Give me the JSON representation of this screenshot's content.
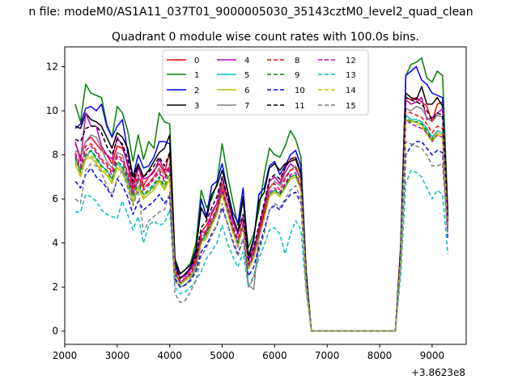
{
  "figure": {
    "suptitle": "n file: modeM0/AS1A11_037T01_9000005030_35143cztM0_level2_quad_clean",
    "offset_label": "+3.8623e8"
  },
  "chart_data": {
    "type": "line",
    "title": "Quadrant 0 module wise count rates with 100.0s bins.",
    "xlabel": "",
    "ylabel": "",
    "x_offset": 386230000,
    "xlim": [
      2000,
      9650
    ],
    "ylim": [
      -0.6,
      12.9
    ],
    "xticks": [
      2000,
      3000,
      4000,
      5000,
      6000,
      7000,
      8000,
      9000
    ],
    "yticks": [
      0,
      2,
      4,
      6,
      8,
      10,
      12
    ],
    "legend_position": "upper center",
    "grid": false,
    "x": [
      2200,
      2300,
      2400,
      2500,
      2600,
      2700,
      2800,
      2900,
      3000,
      3100,
      3200,
      3300,
      3400,
      3500,
      3600,
      3700,
      3800,
      3900,
      4000,
      4100,
      4200,
      4300,
      4400,
      4500,
      4600,
      4700,
      4800,
      4900,
      5000,
      5100,
      5200,
      5300,
      5400,
      5500,
      5600,
      5700,
      5800,
      5900,
      6000,
      6100,
      6200,
      6300,
      6400,
      6500,
      6600,
      6700,
      8300,
      8400,
      8500,
      8600,
      8700,
      8800,
      8900,
      9000,
      9100,
      9200,
      9300
    ],
    "series": [
      {
        "name": "0",
        "color": "#ff0000",
        "dash": "solid",
        "values": [
          8.5,
          7.9,
          8.6,
          8.8,
          8.5,
          8.2,
          8.0,
          7.6,
          8.4,
          8.3,
          7.6,
          6.7,
          7.5,
          6.6,
          7.0,
          7.3,
          7.6,
          7.2,
          8.1,
          3.0,
          2.4,
          2.6,
          2.8,
          3.4,
          4.5,
          4.8,
          5.3,
          5.8,
          6.7,
          6.0,
          5.1,
          4.5,
          5.1,
          3.2,
          3.8,
          4.5,
          5.5,
          6.8,
          7.0,
          6.7,
          7.4,
          7.8,
          7.9,
          7.2,
          2.5,
          0,
          0,
          3.5,
          10.6,
          10.5,
          10.6,
          10.4,
          10.2,
          9.5,
          10.3,
          10.4,
          5.2
        ]
      },
      {
        "name": "1",
        "color": "#008000",
        "dash": "solid",
        "values": [
          10.3,
          9.5,
          11.2,
          10.8,
          10.7,
          10.6,
          9.4,
          8.8,
          10.2,
          9.9,
          9.1,
          7.7,
          8.9,
          7.8,
          8.6,
          8.3,
          9.9,
          9.5,
          9.4,
          3.3,
          2.6,
          2.8,
          3.1,
          4.0,
          6.4,
          5.6,
          6.0,
          6.7,
          8.5,
          7.1,
          5.9,
          4.8,
          5.9,
          3.8,
          4.4,
          5.5,
          7.1,
          8.3,
          8.0,
          7.9,
          8.4,
          9.1,
          8.7,
          7.9,
          2.8,
          0,
          0,
          3.9,
          11.6,
          12.1,
          12.2,
          12.4,
          11.5,
          11.3,
          11.8,
          11.6,
          5.5
        ]
      },
      {
        "name": "2",
        "color": "#0000ff",
        "dash": "solid",
        "values": [
          9.2,
          9.4,
          10.1,
          10.2,
          10.0,
          10.3,
          9.3,
          8.8,
          9.3,
          9.6,
          8.1,
          7.0,
          8.0,
          7.4,
          7.5,
          7.9,
          8.6,
          8.6,
          8.5,
          3.1,
          2.4,
          2.6,
          2.9,
          3.6,
          6.0,
          5.2,
          6.6,
          6.8,
          7.6,
          6.4,
          5.4,
          4.9,
          6.5,
          3.3,
          4.1,
          6.2,
          6.5,
          7.5,
          7.7,
          7.1,
          7.5,
          8.0,
          8.2,
          7.5,
          2.6,
          0,
          0,
          3.7,
          11.6,
          11.8,
          12.0,
          11.4,
          11.2,
          10.8,
          10.7,
          10.6,
          5.1
        ]
      },
      {
        "name": "3",
        "color": "#000000",
        "dash": "solid",
        "values": [
          9.3,
          9.2,
          9.9,
          9.6,
          9.5,
          9.3,
          8.8,
          8.3,
          9.0,
          8.8,
          8.3,
          7.0,
          7.6,
          7.0,
          7.3,
          7.7,
          8.1,
          8.3,
          8.9,
          3.2,
          2.6,
          2.8,
          3.0,
          3.7,
          5.6,
          5.1,
          6.2,
          6.6,
          7.3,
          6.4,
          5.2,
          4.5,
          6.1,
          3.4,
          4.2,
          5.9,
          6.3,
          7.4,
          7.6,
          7.3,
          7.6,
          7.7,
          7.8,
          7.1,
          2.7,
          0,
          0,
          3.7,
          10.8,
          10.6,
          10.5,
          11.1,
          10.3,
          10.3,
          10.6,
          10.2,
          5.3
        ]
      },
      {
        "name": "4",
        "color": "#bf00bf",
        "dash": "solid",
        "values": [
          8.6,
          7.7,
          9.9,
          9.3,
          9.3,
          8.4,
          8.0,
          7.8,
          8.8,
          8.4,
          7.5,
          6.5,
          7.4,
          6.9,
          7.0,
          7.2,
          7.8,
          7.3,
          7.4,
          2.9,
          2.4,
          2.5,
          2.8,
          3.2,
          4.5,
          4.5,
          5.4,
          5.8,
          7.0,
          6.0,
          5.0,
          4.4,
          5.2,
          3.2,
          3.6,
          4.7,
          5.7,
          6.8,
          7.0,
          6.7,
          7.2,
          7.6,
          7.4,
          6.9,
          2.5,
          0,
          0,
          3.6,
          10.5,
          10.3,
          10.4,
          10.6,
          9.6,
          9.7,
          9.9,
          10.1,
          4.8
        ]
      },
      {
        "name": "5",
        "color": "#00bfbf",
        "dash": "solid",
        "values": [
          7.8,
          7.3,
          7.9,
          8.2,
          7.8,
          7.5,
          7.3,
          6.9,
          7.6,
          7.4,
          6.8,
          5.9,
          6.6,
          6.2,
          6.3,
          6.6,
          6.9,
          6.5,
          6.9,
          2.7,
          2.2,
          2.3,
          2.5,
          3.0,
          4.1,
          4.3,
          4.9,
          5.4,
          6.3,
          5.5,
          4.6,
          4.0,
          4.8,
          2.9,
          3.4,
          4.3,
          5.2,
          6.2,
          6.4,
          6.2,
          6.6,
          7.0,
          7.1,
          6.5,
          2.3,
          0,
          0,
          3.3,
          9.8,
          9.6,
          9.6,
          9.5,
          9.2,
          8.8,
          9.1,
          9.0,
          4.7
        ]
      },
      {
        "name": "6",
        "color": "#bfbf00",
        "dash": "solid",
        "values": [
          7.6,
          7.0,
          7.8,
          7.9,
          7.6,
          7.3,
          7.1,
          6.7,
          7.4,
          7.2,
          6.6,
          5.8,
          6.5,
          6.0,
          6.2,
          6.4,
          6.8,
          6.4,
          6.9,
          2.6,
          2.1,
          2.3,
          2.5,
          2.9,
          4.0,
          4.2,
          4.8,
          5.3,
          6.2,
          5.4,
          4.5,
          3.9,
          4.7,
          2.8,
          3.3,
          4.2,
          5.1,
          6.1,
          6.3,
          6.1,
          6.5,
          6.9,
          7.0,
          6.4,
          2.2,
          0,
          0,
          3.2,
          9.6,
          9.5,
          9.5,
          9.4,
          9.0,
          8.7,
          9.0,
          8.9,
          4.6
        ]
      },
      {
        "name": "7",
        "color": "#808080",
        "dash": "solid",
        "values": [
          8.2,
          8.0,
          8.6,
          8.9,
          8.8,
          8.3,
          7.7,
          7.4,
          8.1,
          8.0,
          7.1,
          6.3,
          7.0,
          6.5,
          6.7,
          7.0,
          7.4,
          7.1,
          7.5,
          2.3,
          2.0,
          2.1,
          2.4,
          2.8,
          4.0,
          4.5,
          4.9,
          5.6,
          6.6,
          5.6,
          4.7,
          3.8,
          4.9,
          2.1,
          1.9,
          4.2,
          5.4,
          6.5,
          6.8,
          6.6,
          7.0,
          7.3,
          7.5,
          6.9,
          2.4,
          0,
          0,
          3.4,
          10.1,
          10.0,
          10.2,
          10.1,
          9.7,
          9.5,
          9.8,
          9.7,
          4.9
        ]
      },
      {
        "name": "8",
        "color": "#ff0000",
        "dash": "dashed",
        "values": [
          8.1,
          7.5,
          8.4,
          8.5,
          8.2,
          7.8,
          7.6,
          7.2,
          8.0,
          7.8,
          7.2,
          6.4,
          7.1,
          6.5,
          6.7,
          7.0,
          7.3,
          6.9,
          7.6,
          2.8,
          2.3,
          2.4,
          2.7,
          3.2,
          4.3,
          4.6,
          5.1,
          5.6,
          6.5,
          5.7,
          4.8,
          4.2,
          4.9,
          3.0,
          3.6,
          4.5,
          5.4,
          6.5,
          6.7,
          6.4,
          6.9,
          7.3,
          7.4,
          6.8,
          2.4,
          0,
          0,
          3.4,
          10.0,
          9.9,
          9.8,
          9.7,
          9.4,
          9.0,
          9.3,
          9.2,
          4.8
        ]
      },
      {
        "name": "9",
        "color": "#008000",
        "dash": "dashed",
        "values": [
          7.9,
          7.2,
          8.0,
          8.2,
          7.9,
          7.5,
          7.3,
          6.9,
          7.7,
          7.5,
          6.9,
          6.1,
          6.8,
          6.2,
          6.4,
          6.7,
          7.0,
          6.6,
          7.2,
          2.6,
          2.2,
          2.3,
          2.6,
          3.0,
          4.1,
          4.4,
          4.9,
          5.4,
          6.3,
          5.5,
          4.6,
          4.0,
          4.7,
          2.9,
          3.4,
          4.3,
          5.2,
          6.2,
          6.4,
          6.2,
          6.6,
          7.0,
          7.1,
          6.5,
          2.3,
          0,
          0,
          3.3,
          9.7,
          9.5,
          9.5,
          9.4,
          9.1,
          8.7,
          8.9,
          8.8,
          4.6
        ]
      },
      {
        "name": "10",
        "color": "#0000ff",
        "dash": "dashed",
        "values": [
          6.8,
          6.5,
          7.1,
          7.4,
          7.0,
          6.8,
          6.5,
          6.1,
          6.9,
          6.6,
          6.1,
          5.3,
          5.9,
          5.5,
          5.7,
          5.9,
          6.2,
          5.8,
          6.1,
          2.4,
          2.0,
          2.1,
          2.3,
          2.7,
          3.6,
          3.9,
          4.4,
          4.8,
          5.6,
          4.9,
          4.1,
          3.5,
          4.2,
          2.5,
          2.9,
          3.8,
          4.6,
          5.5,
          5.7,
          5.5,
          5.9,
          6.2,
          6.3,
          5.8,
          2.1,
          0,
          0,
          3.0,
          8.0,
          8.4,
          8.6,
          8.6,
          8.3,
          8.0,
          8.2,
          8.1,
          4.2
        ]
      },
      {
        "name": "11",
        "color": "#000000",
        "dash": "dashed",
        "values": [
          8.7,
          8.6,
          9.2,
          9.3,
          9.3,
          9.0,
          8.4,
          8.0,
          8.7,
          8.5,
          7.8,
          6.8,
          7.5,
          7.0,
          7.2,
          7.5,
          7.9,
          7.5,
          8.1,
          3.0,
          2.4,
          2.6,
          2.9,
          3.4,
          4.7,
          5.0,
          5.6,
          6.1,
          7.0,
          6.1,
          5.2,
          4.5,
          5.3,
          3.2,
          3.8,
          4.8,
          5.8,
          6.9,
          7.1,
          6.9,
          7.4,
          7.8,
          7.9,
          7.2,
          2.5,
          0,
          0,
          3.6,
          10.6,
          10.5,
          10.4,
          10.3,
          10.0,
          9.6,
          9.9,
          9.8,
          5.0
        ]
      },
      {
        "name": "12",
        "color": "#bf00bf",
        "dash": "dashed",
        "values": [
          8.0,
          7.4,
          8.2,
          8.4,
          8.1,
          7.7,
          7.5,
          7.1,
          7.9,
          7.7,
          7.0,
          6.2,
          6.9,
          6.4,
          6.6,
          6.9,
          7.2,
          6.8,
          7.4,
          2.7,
          2.2,
          2.4,
          2.6,
          3.1,
          4.2,
          4.5,
          5.0,
          5.5,
          6.4,
          5.6,
          4.7,
          4.1,
          4.8,
          2.9,
          3.5,
          4.4,
          5.3,
          6.3,
          6.5,
          6.3,
          6.7,
          7.1,
          7.2,
          6.6,
          2.3,
          0,
          0,
          3.3,
          9.6,
          9.4,
          9.3,
          9.2,
          9.0,
          8.6,
          8.9,
          8.8,
          4.6
        ]
      },
      {
        "name": "13",
        "color": "#00bfbf",
        "dash": "dashed",
        "values": [
          5.4,
          5.4,
          6.2,
          6.1,
          5.9,
          5.5,
          5.3,
          5.2,
          5.1,
          5.9,
          5.3,
          4.6,
          5.2,
          4.0,
          4.8,
          5.0,
          4.8,
          4.9,
          5.5,
          2.0,
          1.7,
          1.8,
          2.0,
          2.3,
          2.7,
          3.3,
          3.6,
          4.0,
          4.8,
          4.0,
          3.4,
          2.9,
          3.6,
          2.0,
          2.5,
          3.3,
          3.9,
          4.6,
          4.7,
          4.4,
          3.5,
          4.4,
          5.0,
          4.6,
          1.8,
          0,
          0,
          2.5,
          6.7,
          7.3,
          7.2,
          7.0,
          6.5,
          6.0,
          6.4,
          6.2,
          3.5
        ]
      },
      {
        "name": "14",
        "color": "#bfbf00",
        "dash": "dashed",
        "values": [
          7.7,
          7.1,
          7.9,
          8.0,
          7.7,
          7.4,
          7.2,
          6.8,
          7.5,
          7.3,
          6.7,
          5.9,
          6.6,
          6.1,
          6.3,
          6.5,
          6.9,
          6.5,
          7.0,
          2.6,
          2.1,
          2.3,
          2.5,
          2.9,
          4.0,
          4.3,
          4.8,
          5.3,
          6.2,
          5.4,
          4.5,
          3.9,
          4.7,
          2.8,
          3.3,
          4.2,
          5.1,
          6.1,
          6.3,
          6.1,
          6.5,
          6.9,
          7.0,
          6.4,
          2.2,
          0,
          0,
          3.2,
          9.5,
          9.6,
          9.4,
          9.3,
          8.9,
          8.6,
          8.9,
          8.8,
          4.5
        ]
      },
      {
        "name": "15",
        "color": "#808080",
        "dash": "dashed",
        "values": [
          6.0,
          5.8,
          7.3,
          7.6,
          7.5,
          7.2,
          6.6,
          6.2,
          6.9,
          7.3,
          6.5,
          5.7,
          6.4,
          4.5,
          5.0,
          5.2,
          5.4,
          5.5,
          6.3,
          1.7,
          1.3,
          1.4,
          1.8,
          2.3,
          3.4,
          3.8,
          4.3,
          4.8,
          5.8,
          4.9,
          4.0,
          3.4,
          4.2,
          2.0,
          2.4,
          3.6,
          4.4,
          5.5,
          5.8,
          5.6,
          6.0,
          6.4,
          6.6,
          6.0,
          2.0,
          0,
          0,
          3.0,
          8.6,
          8.5,
          8.4,
          8.3,
          8.0,
          7.5,
          7.5,
          7.6,
          4.3
        ]
      }
    ]
  }
}
